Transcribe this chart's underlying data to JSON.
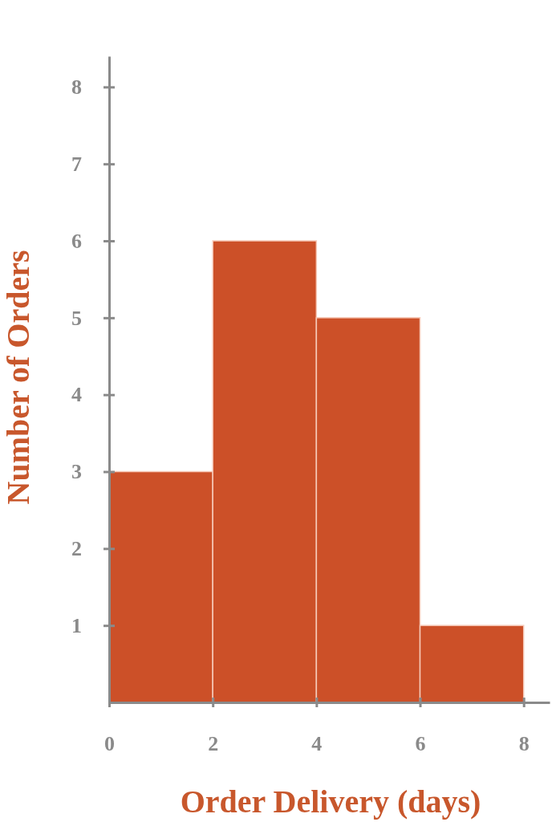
{
  "chart_data": {
    "type": "histogram",
    "bins": [
      0,
      2,
      4,
      6,
      8
    ],
    "values": [
      3,
      6,
      5,
      1
    ],
    "color": "#cc5028",
    "xlabel": "Order Delivery (days)",
    "ylabel": "Number of Orders",
    "xlim": [
      0,
      8.5
    ],
    "ylim": [
      0,
      8.4
    ],
    "xticks": [
      0,
      2,
      4,
      6,
      8
    ],
    "yticks": [
      1,
      2,
      3,
      4,
      5,
      6,
      7,
      8
    ],
    "grid": false
  }
}
